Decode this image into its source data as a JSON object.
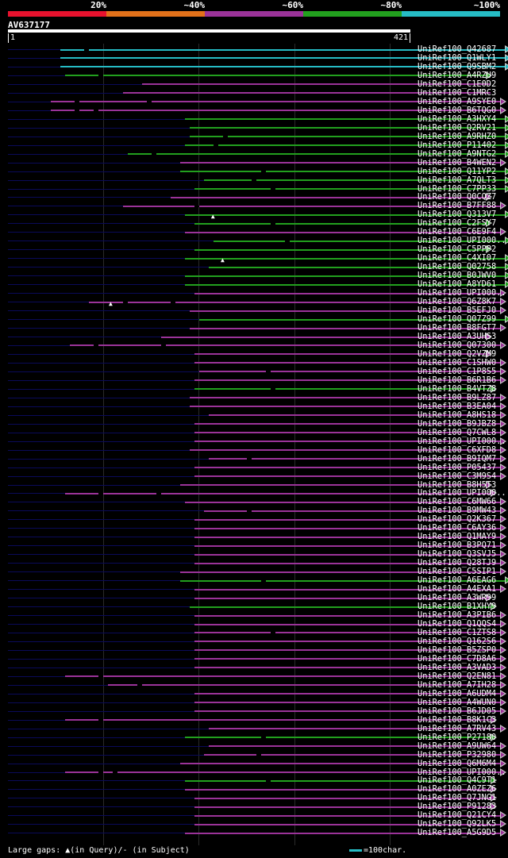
{
  "scale": {
    "labels": [
      "20%",
      "~40%",
      "~60%",
      "~80%",
      "~100%"
    ],
    "colors": [
      "#e8122e",
      "#e2711a",
      "#9b3399",
      "#22a01e",
      "#26bcc5"
    ]
  },
  "query": {
    "id": "AV637177",
    "start": "1",
    "end": "421",
    "length": 421
  },
  "legend": {
    "gaps_text": "Large gaps: ▲(in Query)/- (in Subject)",
    "key_text": "=100char."
  },
  "hits": [
    {
      "label": "UniRef100_Q42687",
      "color": "#26bcc5",
      "start": 55,
      "end": 520,
      "arrow": true,
      "gaps": [
        80
      ]
    },
    {
      "label": "UniRef100_Q1WLY1",
      "color": "#26bcc5",
      "start": 55,
      "end": 520,
      "arrow": true,
      "gaps": []
    },
    {
      "label": "UniRef100_Q9SBM2",
      "color": "#26bcc5",
      "start": 55,
      "end": 520,
      "arrow": true,
      "gaps": []
    },
    {
      "label": "UniRef100_A4RZU9",
      "color": "#22a01e",
      "start": 60,
      "end": 500,
      "arrow": true,
      "gaps": [
        95
      ]
    },
    {
      "label": "UniRef100_C1E0D2",
      "color": "#9b3399",
      "start": 140,
      "end": 505,
      "arrow": false,
      "gaps": []
    },
    {
      "label": "UniRef100_C1MRC3",
      "color": "#9b3399",
      "start": 120,
      "end": 505,
      "arrow": false,
      "gaps": []
    },
    {
      "label": "UniRef100_A9SYE0",
      "color": "#9b3399",
      "start": 45,
      "end": 515,
      "arrow": true,
      "gaps": [
        70,
        145
      ]
    },
    {
      "label": "UniRef100_B6TQG0",
      "color": "#9b3399",
      "start": 45,
      "end": 515,
      "arrow": true,
      "gaps": [
        70,
        90
      ]
    },
    {
      "label": "UniRef100_A3HXY4",
      "color": "#22a01e",
      "start": 185,
      "end": 520,
      "arrow": true,
      "gaps": []
    },
    {
      "label": "UniRef100_Q2RV21",
      "color": "#22a01e",
      "start": 190,
      "end": 520,
      "arrow": true,
      "gaps": []
    },
    {
      "label": "UniRef100_A9RHZ0",
      "color": "#22a01e",
      "start": 190,
      "end": 520,
      "arrow": true,
      "gaps": [
        225
      ]
    },
    {
      "label": "UniRef100_P11402",
      "color": "#22a01e",
      "start": 185,
      "end": 520,
      "arrow": true,
      "gaps": [
        215
      ]
    },
    {
      "label": "UniRef100_A9NTG2",
      "color": "#22a01e",
      "start": 125,
      "end": 520,
      "arrow": true,
      "gaps": [
        150
      ]
    },
    {
      "label": "UniRef100_B4WEN2",
      "color": "#9b3399",
      "start": 180,
      "end": 515,
      "arrow": true,
      "gaps": []
    },
    {
      "label": "UniRef100_Q11YP2",
      "color": "#22a01e",
      "start": 180,
      "end": 520,
      "arrow": true,
      "gaps": [
        265
      ]
    },
    {
      "label": "UniRef100_A7QLT3",
      "color": "#22a01e",
      "start": 205,
      "end": 520,
      "arrow": true,
      "gaps": [
        255
      ]
    },
    {
      "label": "UniRef100_C7PP33",
      "color": "#22a01e",
      "start": 195,
      "end": 520,
      "arrow": true,
      "gaps": [
        275
      ]
    },
    {
      "label": "UniRef100_Q0CQZ7",
      "color": "#9b3399",
      "start": 170,
      "end": 500,
      "arrow": true,
      "gaps": []
    },
    {
      "label": "UniRef100_B7FF88",
      "color": "#9b3399",
      "start": 120,
      "end": 515,
      "arrow": true,
      "gaps": [
        195
      ]
    },
    {
      "label": "UniRef100_Q313V7",
      "color": "#22a01e",
      "start": 185,
      "end": 520,
      "arrow": true,
      "gaps": [],
      "marker": 215
    },
    {
      "label": "UniRef100_C2FSY7",
      "color": "#22a01e",
      "start": 195,
      "end": 500,
      "arrow": true,
      "gaps": [
        275
      ]
    },
    {
      "label": "UniRef100_C6E9F4",
      "color": "#9b3399",
      "start": 185,
      "end": 515,
      "arrow": true,
      "gaps": []
    },
    {
      "label": "UniRef100_UPI000..",
      "color": "#22a01e",
      "start": 215,
      "end": 520,
      "arrow": true,
      "gaps": [
        290
      ]
    },
    {
      "label": "UniRef100_C5PPP2",
      "color": "#22a01e",
      "start": 195,
      "end": 500,
      "arrow": true,
      "gaps": []
    },
    {
      "label": "UniRef100_C4XI07",
      "color": "#22a01e",
      "start": 185,
      "end": 520,
      "arrow": true,
      "gaps": [],
      "marker": 225
    },
    {
      "label": "UniRef100_Q02758",
      "color": "#22a01e",
      "start": 210,
      "end": 520,
      "arrow": true,
      "gaps": []
    },
    {
      "label": "UniRef100_B0JWV0",
      "color": "#22a01e",
      "start": 185,
      "end": 520,
      "arrow": true,
      "gaps": []
    },
    {
      "label": "UniRef100_A8YD61",
      "color": "#22a01e",
      "start": 185,
      "end": 520,
      "arrow": true,
      "gaps": []
    },
    {
      "label": "UniRef100_UPI000..",
      "color": "#9b3399",
      "start": 195,
      "end": 515,
      "arrow": true,
      "gaps": []
    },
    {
      "label": "UniRef100_Q6Z8K7",
      "color": "#9b3399",
      "start": 85,
      "end": 515,
      "arrow": true,
      "gaps": [
        120,
        170
      ],
      "marker": 108
    },
    {
      "label": "UniRef100_B5EFJ0",
      "color": "#9b3399",
      "start": 190,
      "end": 515,
      "arrow": true,
      "gaps": []
    },
    {
      "label": "UniRef100_Q07Z99",
      "color": "#22a01e",
      "start": 200,
      "end": 520,
      "arrow": true,
      "gaps": []
    },
    {
      "label": "UniRef100_B8FGT7",
      "color": "#9b3399",
      "start": 190,
      "end": 515,
      "arrow": true,
      "gaps": []
    },
    {
      "label": "UniRef100_A3UHS3",
      "color": "#9b3399",
      "start": 160,
      "end": 500,
      "arrow": true,
      "gaps": []
    },
    {
      "label": "UniRef100_Q07300",
      "color": "#9b3399",
      "start": 65,
      "end": 515,
      "arrow": true,
      "gaps": [
        90,
        160
      ]
    },
    {
      "label": "UniRef100_Q2VZM9",
      "color": "#9b3399",
      "start": 195,
      "end": 500,
      "arrow": true,
      "gaps": []
    },
    {
      "label": "UniRef100_C1SHW0",
      "color": "#9b3399",
      "start": 195,
      "end": 515,
      "arrow": true,
      "gaps": []
    },
    {
      "label": "UniRef100_C1P8S5",
      "color": "#9b3399",
      "start": 200,
      "end": 515,
      "arrow": true,
      "gaps": [
        270
      ]
    },
    {
      "label": "UniRef100_B6R1B6",
      "color": "#9b3399",
      "start": 195,
      "end": 515,
      "arrow": true,
      "gaps": []
    },
    {
      "label": "UniRef100_B4VTZ8",
      "color": "#22a01e",
      "start": 195,
      "end": 505,
      "arrow": true,
      "gaps": [
        275
      ]
    },
    {
      "label": "UniRef100_B9LZ87",
      "color": "#9b3399",
      "start": 190,
      "end": 515,
      "arrow": true,
      "gaps": []
    },
    {
      "label": "UniRef100_B3EA04",
      "color": "#9b3399",
      "start": 190,
      "end": 515,
      "arrow": true,
      "gaps": []
    },
    {
      "label": "UniRef100_A8HS18",
      "color": "#9b3399",
      "start": 210,
      "end": 515,
      "arrow": true,
      "gaps": []
    },
    {
      "label": "UniRef100_B9JBZ8",
      "color": "#9b3399",
      "start": 195,
      "end": 515,
      "arrow": true,
      "gaps": []
    },
    {
      "label": "UniRef100_Q7CWL8",
      "color": "#9b3399",
      "start": 195,
      "end": 515,
      "arrow": true,
      "gaps": []
    },
    {
      "label": "UniRef100_UPI000..",
      "color": "#9b3399",
      "start": 195,
      "end": 515,
      "arrow": true,
      "gaps": []
    },
    {
      "label": "UniRef100_C6XFD8",
      "color": "#9b3399",
      "start": 190,
      "end": 515,
      "arrow": true,
      "gaps": []
    },
    {
      "label": "UniRef100_B9IQM7",
      "color": "#9b3399",
      "start": 210,
      "end": 515,
      "arrow": true,
      "gaps": [
        250
      ]
    },
    {
      "label": "UniRef100_P05437",
      "color": "#9b3399",
      "start": 195,
      "end": 515,
      "arrow": true,
      "gaps": []
    },
    {
      "label": "UniRef100_C3M9S4",
      "color": "#9b3399",
      "start": 195,
      "end": 515,
      "arrow": true,
      "gaps": []
    },
    {
      "label": "UniRef100_B8H5T3",
      "color": "#9b3399",
      "start": 180,
      "end": 500,
      "arrow": true,
      "gaps": []
    },
    {
      "label": "UniRef100_UPI000..",
      "color": "#9b3399",
      "start": 60,
      "end": 505,
      "arrow": true,
      "gaps": [
        95,
        155
      ]
    },
    {
      "label": "UniRef100_C6MW66",
      "color": "#9b3399",
      "start": 185,
      "end": 515,
      "arrow": true,
      "gaps": []
    },
    {
      "label": "UniRef100_B9MW43",
      "color": "#9b3399",
      "start": 205,
      "end": 515,
      "arrow": true,
      "gaps": [
        250
      ]
    },
    {
      "label": "UniRef100_Q2K367",
      "color": "#9b3399",
      "start": 195,
      "end": 515,
      "arrow": true,
      "gaps": []
    },
    {
      "label": "UniRef100_C6AY36",
      "color": "#9b3399",
      "start": 195,
      "end": 515,
      "arrow": true,
      "gaps": []
    },
    {
      "label": "UniRef100_Q1MAY9",
      "color": "#9b3399",
      "start": 195,
      "end": 515,
      "arrow": true,
      "gaps": []
    },
    {
      "label": "UniRef100_B3PQ71",
      "color": "#9b3399",
      "start": 195,
      "end": 515,
      "arrow": true,
      "gaps": []
    },
    {
      "label": "UniRef100_Q3SVJ5",
      "color": "#9b3399",
      "start": 195,
      "end": 515,
      "arrow": true,
      "gaps": []
    },
    {
      "label": "UniRef100_Q28TJ9",
      "color": "#9b3399",
      "start": 195,
      "end": 515,
      "arrow": true,
      "gaps": []
    },
    {
      "label": "UniRef100_C5SIP1",
      "color": "#9b3399",
      "start": 180,
      "end": 515,
      "arrow": true,
      "gaps": []
    },
    {
      "label": "UniRef100_A6EAG6",
      "color": "#22a01e",
      "start": 180,
      "end": 520,
      "arrow": true,
      "gaps": [
        265
      ]
    },
    {
      "label": "UniRef100_A4EXA1",
      "color": "#9b3399",
      "start": 195,
      "end": 515,
      "arrow": true,
      "gaps": []
    },
    {
      "label": "UniRef100_A3WR99",
      "color": "#9b3399",
      "start": 195,
      "end": 500,
      "arrow": true,
      "gaps": []
    },
    {
      "label": "UniRef100_B1XHY9",
      "color": "#22a01e",
      "start": 190,
      "end": 505,
      "arrow": true,
      "gaps": []
    },
    {
      "label": "UniRef100_A3PIB6",
      "color": "#9b3399",
      "start": 195,
      "end": 515,
      "arrow": true,
      "gaps": []
    },
    {
      "label": "UniRef100_Q1QQS4",
      "color": "#9b3399",
      "start": 195,
      "end": 515,
      "arrow": true,
      "gaps": []
    },
    {
      "label": "UniRef100_C1ZTS8",
      "color": "#9b3399",
      "start": 195,
      "end": 515,
      "arrow": true,
      "gaps": [
        275
      ]
    },
    {
      "label": "UniRef100_Q162S6",
      "color": "#9b3399",
      "start": 195,
      "end": 515,
      "arrow": true,
      "gaps": []
    },
    {
      "label": "UniRef100_B5ZSP0",
      "color": "#9b3399",
      "start": 195,
      "end": 515,
      "arrow": true,
      "gaps": []
    },
    {
      "label": "UniRef100_C7D8A6",
      "color": "#9b3399",
      "start": 195,
      "end": 515,
      "arrow": true,
      "gaps": []
    },
    {
      "label": "UniRef100_A3VAD3",
      "color": "#9b3399",
      "start": 195,
      "end": 515,
      "arrow": true,
      "gaps": []
    },
    {
      "label": "UniRef100_Q2EN81",
      "color": "#9b3399",
      "start": 60,
      "end": 515,
      "arrow": true,
      "gaps": [
        95
      ]
    },
    {
      "label": "UniRef100_A7IH28",
      "color": "#9b3399",
      "start": 105,
      "end": 515,
      "arrow": true,
      "gaps": [
        135
      ]
    },
    {
      "label": "UniRef100_A6UDM4",
      "color": "#9b3399",
      "start": 195,
      "end": 515,
      "arrow": true,
      "gaps": []
    },
    {
      "label": "UniRef100_A4WUN0",
      "color": "#9b3399",
      "start": 195,
      "end": 515,
      "arrow": true,
      "gaps": []
    },
    {
      "label": "UniRef100_B6JD05",
      "color": "#9b3399",
      "start": 195,
      "end": 515,
      "arrow": true,
      "gaps": []
    },
    {
      "label": "UniRef100_B8K1C3",
      "color": "#9b3399",
      "start": 60,
      "end": 505,
      "arrow": true,
      "gaps": [
        95
      ]
    },
    {
      "label": "UniRef100_A7RV43",
      "color": "#9b3399",
      "start": 210,
      "end": 515,
      "arrow": true,
      "gaps": []
    },
    {
      "label": "UniRef100_P27180",
      "color": "#22a01e",
      "start": 185,
      "end": 505,
      "arrow": true,
      "gaps": [
        265
      ]
    },
    {
      "label": "UniRef100_A9UW64",
      "color": "#9b3399",
      "start": 210,
      "end": 515,
      "arrow": true,
      "gaps": []
    },
    {
      "label": "UniRef100_P32980",
      "color": "#9b3399",
      "start": 205,
      "end": 515,
      "arrow": true,
      "gaps": [
        260
      ]
    },
    {
      "label": "UniRef100_Q6M6M4",
      "color": "#9b3399",
      "start": 180,
      "end": 515,
      "arrow": true,
      "gaps": []
    },
    {
      "label": "UniRef100_UPI000..",
      "color": "#9b3399",
      "start": 60,
      "end": 515,
      "arrow": true,
      "gaps": [
        95,
        110
      ]
    },
    {
      "label": "UniRef100_Q4C9T1",
      "color": "#22a01e",
      "start": 185,
      "end": 505,
      "arrow": true,
      "gaps": [
        270
      ]
    },
    {
      "label": "UniRef100_A0ZEZ6",
      "color": "#9b3399",
      "start": 185,
      "end": 505,
      "arrow": true,
      "gaps": []
    },
    {
      "label": "UniRef100_Q7JNG1",
      "color": "#9b3399",
      "start": 195,
      "end": 505,
      "arrow": true,
      "gaps": []
    },
    {
      "label": "UniRef100_P91283",
      "color": "#9b3399",
      "start": 195,
      "end": 505,
      "arrow": true,
      "gaps": []
    },
    {
      "label": "UniRef100_Q21CY4",
      "color": "#9b3399",
      "start": 195,
      "end": 515,
      "arrow": true,
      "gaps": []
    },
    {
      "label": "UniRef100_Q92LK5",
      "color": "#9b3399",
      "start": 195,
      "end": 515,
      "arrow": true,
      "gaps": []
    },
    {
      "label": "UniRef100_A5G9D5",
      "color": "#9b3399",
      "start": 185,
      "end": 515,
      "arrow": true,
      "gaps": []
    }
  ]
}
